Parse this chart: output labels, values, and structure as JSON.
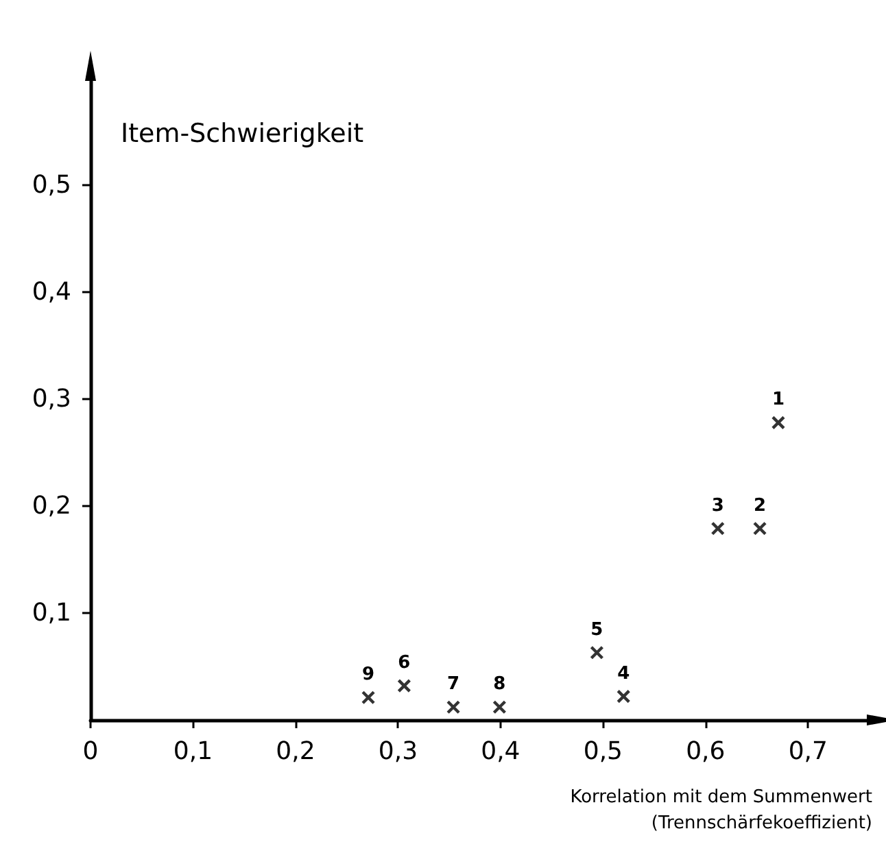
{
  "chart_data": {
    "type": "scatter",
    "ylabel": "Item-Schwierigkeit",
    "xlabel": "Korrelation mit dem Summenwert\n(Trennschärfekoeffizient)",
    "x": [
      0.271,
      0.306,
      0.354,
      0.399,
      0.494,
      0.52,
      0.612,
      0.653,
      0.671
    ],
    "values": [
      0.021,
      0.032,
      0.012,
      0.012,
      0.063,
      0.022,
      0.179,
      0.179,
      0.278
    ],
    "annotations": [
      {
        "text": "9",
        "x": 0.271,
        "y": 0.021
      },
      {
        "text": "6",
        "x": 0.306,
        "y": 0.032
      },
      {
        "text": "7",
        "x": 0.354,
        "y": 0.012
      },
      {
        "text": "8",
        "x": 0.399,
        "y": 0.012
      },
      {
        "text": "5",
        "x": 0.494,
        "y": 0.063
      },
      {
        "text": "4",
        "x": 0.52,
        "y": 0.022
      },
      {
        "text": "3",
        "x": 0.612,
        "y": 0.179
      },
      {
        "text": "2",
        "x": 0.653,
        "y": 0.179
      },
      {
        "text": "1",
        "x": 0.671,
        "y": 0.278
      }
    ],
    "color": "#000000",
    "marker": "cross",
    "xlim": [
      0,
      0.76
    ],
    "ylim": [
      0,
      0.6
    ],
    "xticks": [
      0,
      {
        "value": 0.1,
        "label": "0,1"
      },
      {
        "value": 0.2,
        "label": "0,2"
      },
      {
        "value": 0.3,
        "label": "0,3"
      },
      {
        "value": 0.4,
        "label": "0,4"
      },
      {
        "value": 0.5,
        "label": "0,5"
      },
      {
        "value": 0.6,
        "label": "0,6"
      },
      {
        "value": 0.7,
        "label": "0,7"
      }
    ],
    "yticks": [
      {
        "value": 0.1,
        "label": "0,1"
      },
      {
        "value": 0.2,
        "label": "0,2"
      },
      {
        "value": 0.3,
        "label": "0,3"
      },
      {
        "value": 0.4,
        "label": "0,4"
      },
      {
        "value": 0.5,
        "label": "0,5"
      }
    ],
    "grid": false
  }
}
